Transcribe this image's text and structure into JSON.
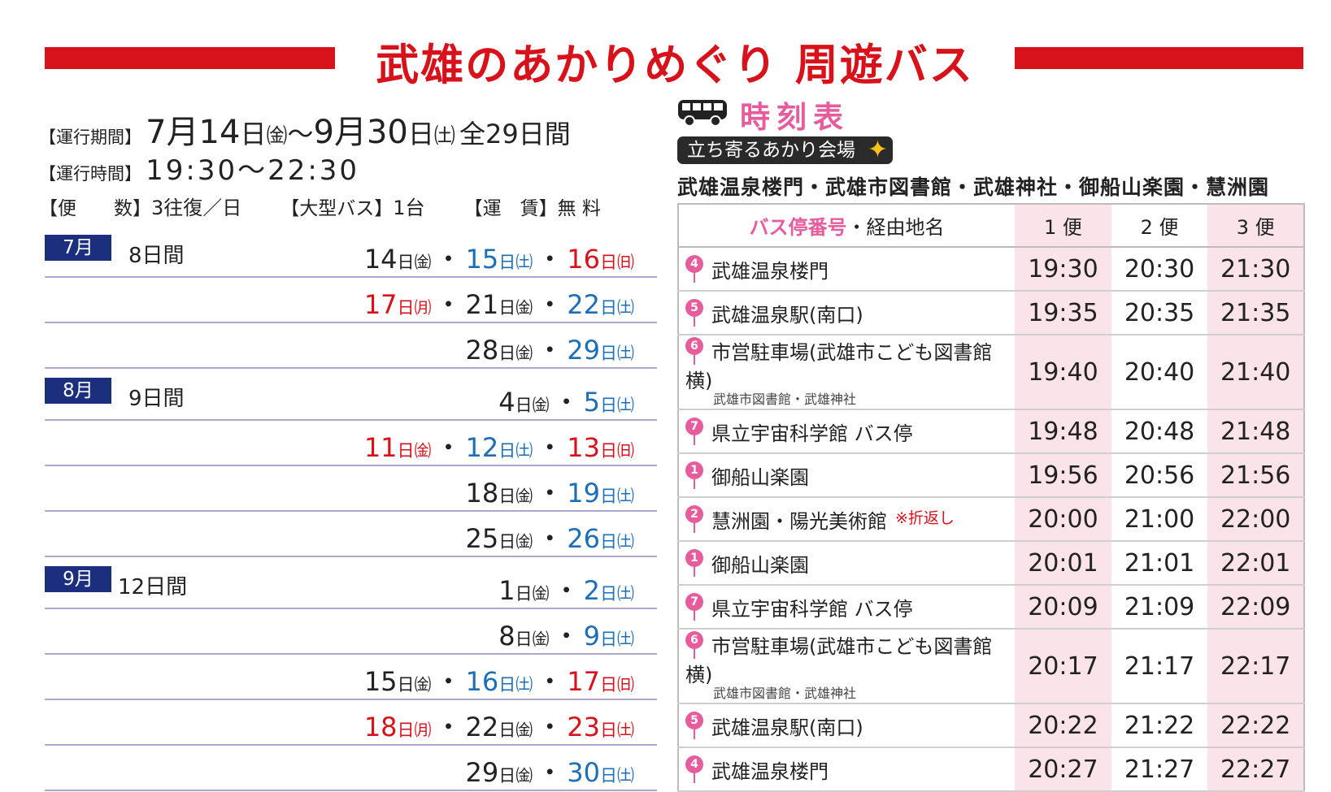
{
  "header": {
    "title": "武雄のあかりめぐり 周遊バス"
  },
  "info": {
    "period_label": "【運行期間】",
    "period_start_month": "7月",
    "period_start_day": "14",
    "period_start_day_unit": "日",
    "period_start_wd": "㈮",
    "period_tilde": "～",
    "period_end_month": "9月",
    "period_end_day": "30",
    "period_end_day_unit": "日",
    "period_end_wd": "㈯",
    "period_total": "全29日間",
    "hours_label": "【運行時間】",
    "hours_value": "19:30～22:30",
    "trips_label": "【便　　数】",
    "trips_value": "3往復／日",
    "bus_label": "【大型バス】",
    "bus_value": "1台",
    "fare_label": "【運　賃】",
    "fare_value": "無 料"
  },
  "calendar": {
    "months": [
      {
        "name": "7月",
        "days": "8日間",
        "rows": [
          [
            {
              "n": "14",
              "wd": "日㈮",
              "c": "fri"
            },
            {
              "n": "15",
              "wd": "日㈯",
              "c": "sat"
            },
            {
              "n": "16",
              "wd": "日㈰",
              "c": "sun"
            }
          ],
          [
            {
              "n": "17",
              "wd": "日㈪",
              "c": "sun"
            },
            {
              "n": "21",
              "wd": "日㈮",
              "c": "fri"
            },
            {
              "n": "22",
              "wd": "日㈯",
              "c": "sat"
            }
          ],
          [
            {
              "n": "28",
              "wd": "日㈮",
              "c": "fri"
            },
            {
              "n": "29",
              "wd": "日㈯",
              "c": "sat"
            }
          ]
        ]
      },
      {
        "name": "8月",
        "days": "9日間",
        "rows": [
          [
            {
              "n": "4",
              "wd": "日㈮",
              "c": "fri"
            },
            {
              "n": "5",
              "wd": "日㈯",
              "c": "sat"
            }
          ],
          [
            {
              "n": "11",
              "wd": "日㈮",
              "c": "sun"
            },
            {
              "n": "12",
              "wd": "日㈯",
              "c": "sat"
            },
            {
              "n": "13",
              "wd": "日㈰",
              "c": "sun"
            }
          ],
          [
            {
              "n": "18",
              "wd": "日㈮",
              "c": "fri"
            },
            {
              "n": "19",
              "wd": "日㈯",
              "c": "sat"
            }
          ],
          [
            {
              "n": "25",
              "wd": "日㈮",
              "c": "fri"
            },
            {
              "n": "26",
              "wd": "日㈯",
              "c": "sat"
            }
          ]
        ]
      },
      {
        "name": "9月",
        "days": "12日間",
        "rows": [
          [
            {
              "n": "1",
              "wd": "日㈮",
              "c": "fri"
            },
            {
              "n": "2",
              "wd": "日㈯",
              "c": "sat"
            }
          ],
          [
            {
              "n": "8",
              "wd": "日㈮",
              "c": "fri"
            },
            {
              "n": "9",
              "wd": "日㈯",
              "c": "sat"
            }
          ],
          [
            {
              "n": "15",
              "wd": "日㈮",
              "c": "fri"
            },
            {
              "n": "16",
              "wd": "日㈯",
              "c": "sat"
            },
            {
              "n": "17",
              "wd": "日㈰",
              "c": "sun"
            }
          ],
          [
            {
              "n": "18",
              "wd": "日㈪",
              "c": "sun"
            },
            {
              "n": "22",
              "wd": "日㈮",
              "c": "fri"
            },
            {
              "n": "23",
              "wd": "日㈯",
              "c": "sun"
            }
          ],
          [
            {
              "n": "29",
              "wd": "日㈮",
              "c": "fri"
            },
            {
              "n": "30",
              "wd": "日㈯",
              "c": "sat"
            }
          ]
        ]
      }
    ],
    "separator": "・"
  },
  "timetable": {
    "title": "時刻表",
    "pill": "立ち寄るあかり会場",
    "venues": "武雄温泉楼門・武雄市図書館・武雄神社・御船山楽園・慧洲園",
    "head_stop_pink": "バス停番号",
    "head_stop_rest": "・経由地名",
    "head_trips": [
      "1 便",
      "2 便",
      "3 便"
    ],
    "rows": [
      {
        "num": "4",
        "name": "武雄温泉楼門",
        "times": [
          "19:30",
          "20:30",
          "21:30"
        ]
      },
      {
        "num": "5",
        "name": "武雄温泉駅(南口)",
        "times": [
          "19:35",
          "20:35",
          "21:35"
        ]
      },
      {
        "num": "6",
        "name": "市営駐車場(武雄市こども図書館横)",
        "sub": "武雄市図書館・武雄神社",
        "times": [
          "19:40",
          "20:40",
          "21:40"
        ]
      },
      {
        "num": "7",
        "name": "県立宇宙科学館 バス停",
        "times": [
          "19:48",
          "20:48",
          "21:48"
        ]
      },
      {
        "num": "1",
        "name": "御船山楽園",
        "times": [
          "19:56",
          "20:56",
          "21:56"
        ]
      },
      {
        "num": "2",
        "name": "慧洲園・陽光美術館",
        "note": "※折返し",
        "times": [
          "20:00",
          "21:00",
          "22:00"
        ]
      },
      {
        "num": "1",
        "name": "御船山楽園",
        "times": [
          "20:01",
          "21:01",
          "22:01"
        ]
      },
      {
        "num": "7",
        "name": "県立宇宙科学館 バス停",
        "times": [
          "20:09",
          "21:09",
          "22:09"
        ]
      },
      {
        "num": "6",
        "name": "市営駐車場(武雄市こども図書館横)",
        "sub": "武雄市図書館・武雄神社",
        "times": [
          "20:17",
          "21:17",
          "22:17"
        ]
      },
      {
        "num": "5",
        "name": "武雄温泉駅(南口)",
        "times": [
          "20:22",
          "21:22",
          "22:22"
        ]
      },
      {
        "num": "4",
        "name": "武雄温泉楼門",
        "times": [
          "20:27",
          "21:27",
          "22:27"
        ]
      }
    ]
  }
}
